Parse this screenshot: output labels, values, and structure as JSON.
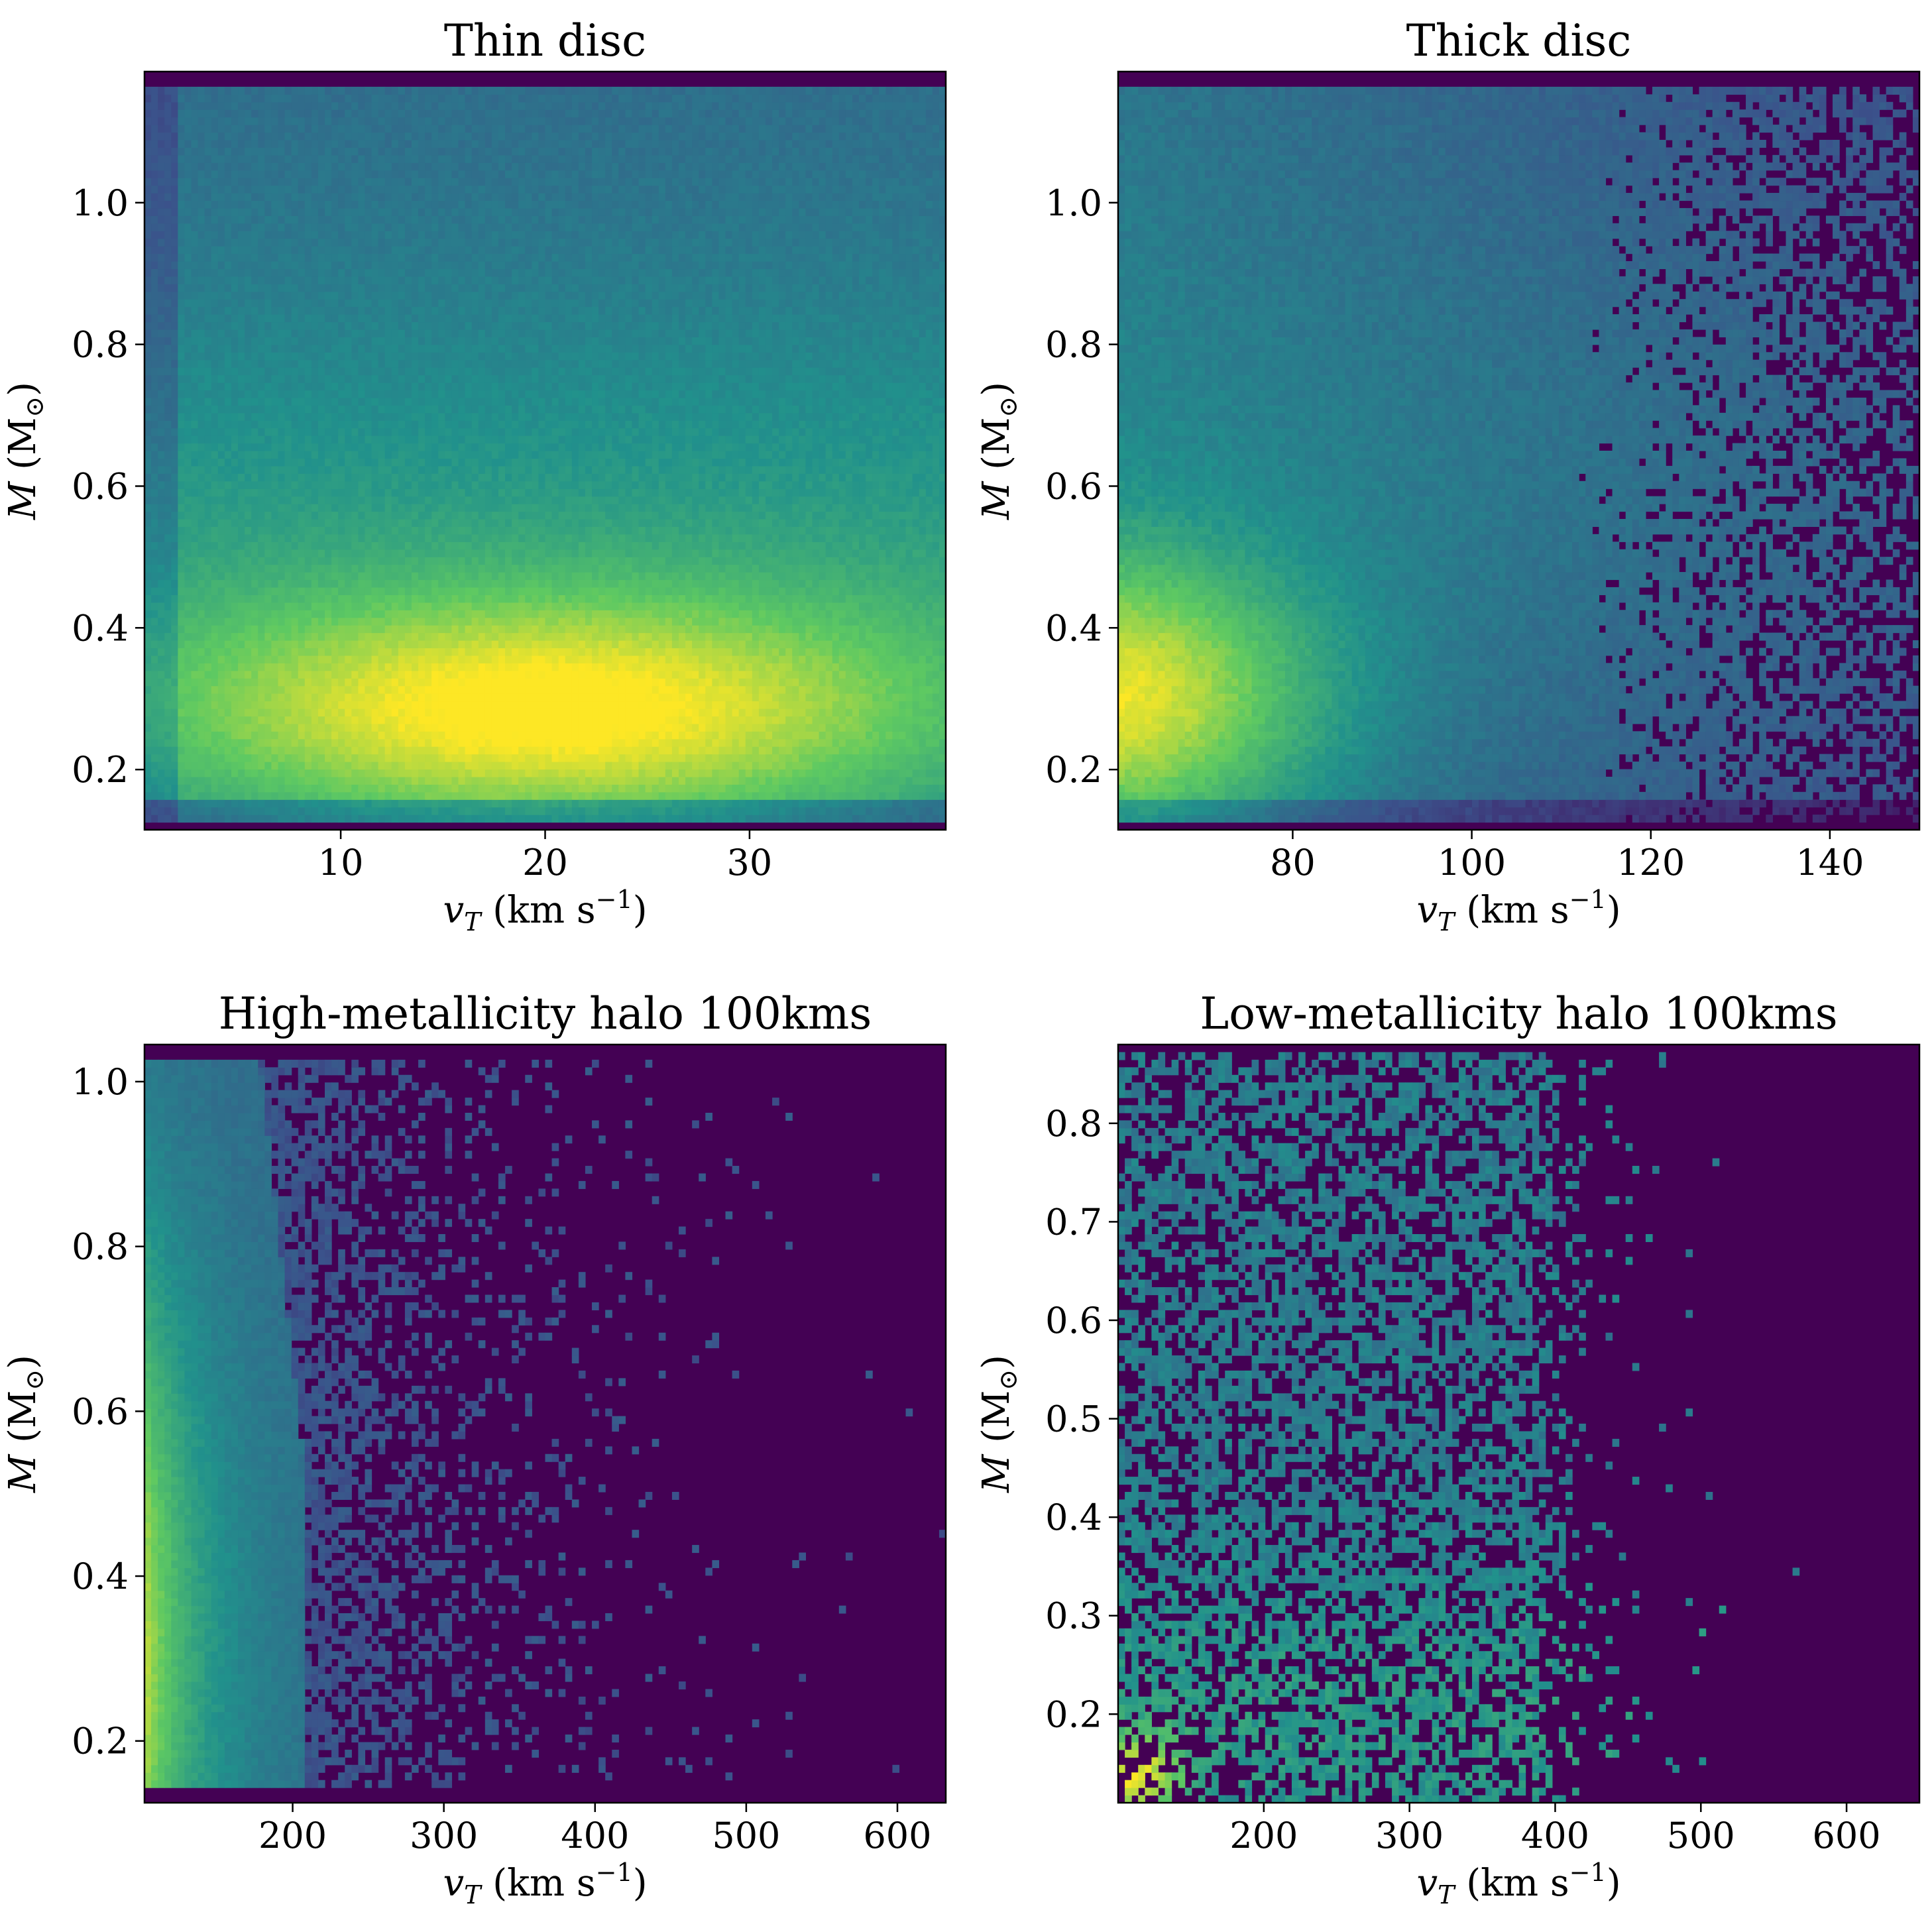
{
  "colormap": [
    "#440154",
    "#3b528b",
    "#21918c",
    "#5ec962",
    "#fde725"
  ],
  "chart_data": [
    {
      "type": "heatmap",
      "title": "Thin disc",
      "xlabel": {
        "var": "v",
        "sub": "T",
        "unit": " (km s",
        "sup": "−1",
        "close": ")"
      },
      "ylabel": {
        "var": "M",
        "unit": " (M",
        "sub": "⊙",
        "close": ")"
      },
      "xlim": [
        0.4,
        39.6
      ],
      "ylim": [
        0.115,
        1.185
      ],
      "xticks": [
        10,
        20,
        30
      ],
      "xtick_labels": [
        "10",
        "20",
        "30"
      ],
      "yticks": [
        0.2,
        0.4,
        0.6,
        0.8,
        1.0
      ],
      "ytick_labels": [
        "0.2",
        "0.4",
        "0.6",
        "0.8",
        "1.0"
      ],
      "bins": [
        120,
        100
      ],
      "density_model": "thin-disc: peak near v_T≈20, M≈0.28",
      "colorscale": "viridis"
    },
    {
      "type": "heatmap",
      "title": "Thick disc",
      "xlabel": {
        "var": "v",
        "sub": "T",
        "unit": " (km s",
        "sup": "−1",
        "close": ")"
      },
      "ylabel": {
        "var": "M",
        "unit": " (M",
        "sub": "⊙",
        "close": ")"
      },
      "xlim": [
        60.5,
        150
      ],
      "ylim": [
        0.115,
        1.185
      ],
      "xticks": [
        80,
        100,
        120,
        140
      ],
      "xtick_labels": [
        "80",
        "100",
        "120",
        "140"
      ],
      "yticks": [
        0.2,
        0.4,
        0.6,
        0.8,
        1.0
      ],
      "ytick_labels": [
        "0.2",
        "0.4",
        "0.6",
        "0.8",
        "1.0"
      ],
      "bins": [
        120,
        100
      ],
      "density_model": "thick-disc: peak near v_T≈60, M≈0.3",
      "colorscale": "viridis"
    },
    {
      "type": "heatmap",
      "title": "High-metallicity halo 100kms",
      "xlabel": {
        "var": "v",
        "sub": "T",
        "unit": " (km s",
        "sup": "−1",
        "close": ")"
      },
      "ylabel": {
        "var": "M",
        "unit": " (M",
        "sub": "⊙",
        "close": ")"
      },
      "xlim": [
        102,
        632
      ],
      "ylim": [
        0.125,
        1.045
      ],
      "xticks": [
        200,
        300,
        400,
        500,
        600
      ],
      "xtick_labels": [
        "200",
        "300",
        "400",
        "500",
        "600"
      ],
      "yticks": [
        0.2,
        0.4,
        0.6,
        0.8,
        1.0
      ],
      "ytick_labels": [
        "0.2",
        "0.4",
        "0.6",
        "0.8",
        "1.0"
      ],
      "bins": [
        120,
        100
      ],
      "density_model": "high-metallicity halo: dense column at v_T≈100–150, sparse to ~420",
      "colorscale": "viridis"
    },
    {
      "type": "heatmap",
      "title": "Low-metallicity halo 100kms",
      "xlabel": {
        "var": "v",
        "sub": "T",
        "unit": " (km s",
        "sup": "−1",
        "close": ")"
      },
      "ylabel": {
        "var": "M",
        "unit": " (M",
        "sub": "⊙",
        "close": ")"
      },
      "xlim": [
        100,
        650
      ],
      "ylim": [
        0.11,
        0.88
      ],
      "xticks": [
        200,
        300,
        400,
        500,
        600
      ],
      "xtick_labels": [
        "200",
        "300",
        "400",
        "500",
        "600"
      ],
      "yticks": [
        0.2,
        0.3,
        0.4,
        0.5,
        0.6,
        0.7,
        0.8
      ],
      "ytick_labels": [
        "0.2",
        "0.3",
        "0.4",
        "0.5",
        "0.6",
        "0.7",
        "0.8"
      ],
      "bins": [
        120,
        100
      ],
      "density_model": "low-metallicity halo: sparse speckle to v_T≈420, hot spot near v_T≈110, M≈0.14",
      "colorscale": "viridis"
    }
  ]
}
